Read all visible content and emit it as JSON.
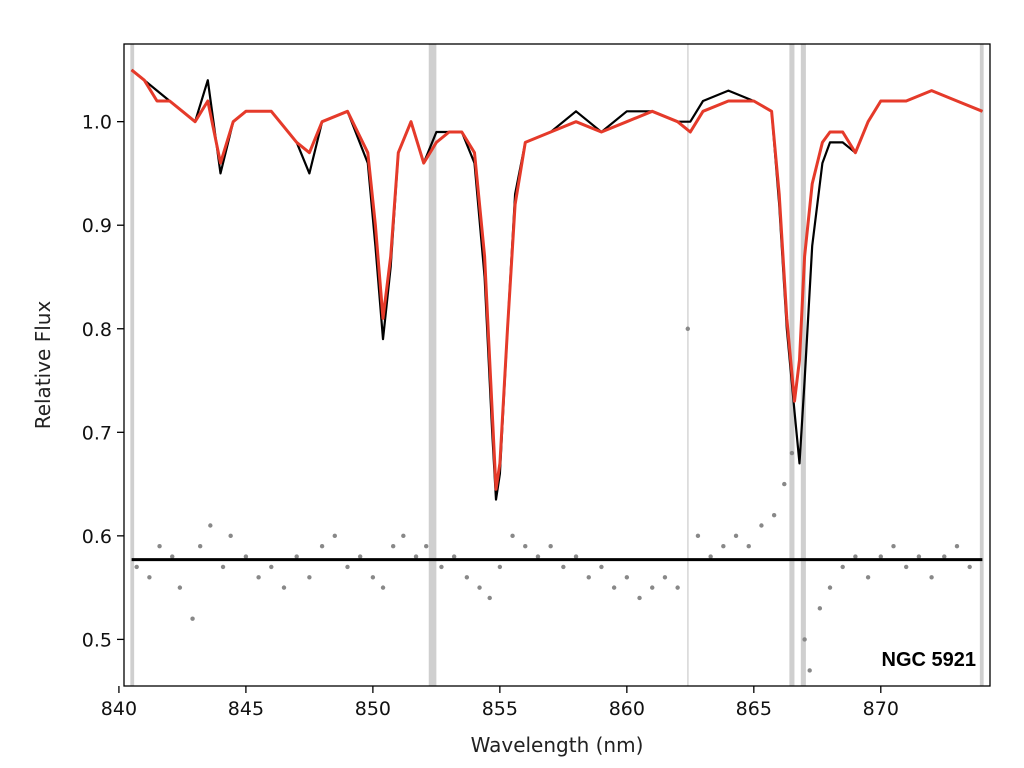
{
  "chart_data": {
    "type": "line",
    "title": "",
    "xlabel": "Wavelength (nm)",
    "ylabel": "Relative Flux",
    "xlim": [
      840.2,
      874.3
    ],
    "ylim": [
      0.455,
      1.075
    ],
    "xticks": [
      840,
      845,
      850,
      855,
      860,
      865,
      870
    ],
    "yticks": [
      0.5,
      0.6,
      0.7,
      0.8,
      0.9,
      1.0
    ],
    "xtick_labels": [
      "840",
      "845",
      "850",
      "855",
      "860",
      "865",
      "870"
    ],
    "ytick_labels": [
      "0.5",
      "0.6",
      "0.7",
      "0.8",
      "0.9",
      "1.0"
    ],
    "annotation": "NGC 5921",
    "grid": false,
    "legend": "none",
    "masked_regions": [
      {
        "x0": 840.45,
        "x1": 840.6
      },
      {
        "x0": 852.2,
        "x1": 852.5
      },
      {
        "x0": 862.38,
        "x1": 862.43
      },
      {
        "x0": 866.4,
        "x1": 866.6
      },
      {
        "x0": 866.85,
        "x1": 867.05
      },
      {
        "x0": 873.9,
        "x1": 874.05
      }
    ],
    "colors": {
      "observed": "#000000",
      "model": "#e53a2a",
      "residuals": "#888888",
      "zero_line": "#000000",
      "mask": "#cfcfcf"
    },
    "residual_baseline": 0.577,
    "series": [
      {
        "style": "black-line",
        "x": [
          840.5,
          841.0,
          841.5,
          842.0,
          842.5,
          843.0,
          843.5,
          844.0,
          844.5,
          845.0,
          846.0,
          847.0,
          847.5,
          848.0,
          849.0,
          849.8,
          850.1,
          850.4,
          850.7,
          851.0,
          851.5,
          852.0,
          852.5,
          853.0,
          853.5,
          854.0,
          854.4,
          854.7,
          854.85,
          855.0,
          855.3,
          855.6,
          856.0,
          857.0,
          858.0,
          859.0,
          860.0,
          861.0,
          862.0,
          862.5,
          863.0,
          864.0,
          865.0,
          865.7,
          866.0,
          866.3,
          866.6,
          866.8,
          867.0,
          867.3,
          867.7,
          868.0,
          868.5,
          869.0,
          869.5,
          870.0,
          871.0,
          872.0,
          873.0,
          874.0
        ],
        "y": [
          1.05,
          1.04,
          1.03,
          1.02,
          1.01,
          1.0,
          1.04,
          0.95,
          1.0,
          1.01,
          1.01,
          0.98,
          0.95,
          1.0,
          1.01,
          0.96,
          0.88,
          0.79,
          0.86,
          0.97,
          1.0,
          0.96,
          0.99,
          0.99,
          0.99,
          0.96,
          0.85,
          0.7,
          0.635,
          0.66,
          0.8,
          0.93,
          0.98,
          0.99,
          1.01,
          0.99,
          1.01,
          1.01,
          1.0,
          1.0,
          1.02,
          1.03,
          1.02,
          1.01,
          0.92,
          0.8,
          0.72,
          0.67,
          0.75,
          0.88,
          0.96,
          0.98,
          0.98,
          0.97,
          1.0,
          1.02,
          1.02,
          1.03,
          1.02,
          1.01
        ]
      },
      {
        "style": "red-line",
        "x": [
          840.5,
          841.0,
          841.5,
          842.0,
          842.5,
          843.0,
          843.5,
          844.0,
          844.5,
          845.0,
          846.0,
          847.0,
          847.5,
          848.0,
          849.0,
          849.8,
          850.1,
          850.4,
          850.7,
          851.0,
          851.5,
          852.0,
          852.5,
          853.0,
          853.5,
          854.0,
          854.4,
          854.7,
          854.85,
          855.0,
          855.3,
          855.6,
          856.0,
          857.0,
          858.0,
          859.0,
          860.0,
          861.0,
          862.0,
          862.5,
          863.0,
          864.0,
          865.0,
          865.7,
          866.0,
          866.3,
          866.6,
          866.8,
          867.0,
          867.3,
          867.7,
          868.0,
          868.5,
          869.0,
          869.5,
          870.0,
          871.0,
          872.0,
          873.0,
          874.0
        ],
        "y": [
          1.05,
          1.04,
          1.02,
          1.02,
          1.01,
          1.0,
          1.02,
          0.96,
          1.0,
          1.01,
          1.01,
          0.98,
          0.97,
          1.0,
          1.01,
          0.97,
          0.9,
          0.81,
          0.87,
          0.97,
          1.0,
          0.96,
          0.98,
          0.99,
          0.99,
          0.97,
          0.87,
          0.72,
          0.645,
          0.67,
          0.8,
          0.92,
          0.98,
          0.99,
          1.0,
          0.99,
          1.0,
          1.01,
          1.0,
          0.99,
          1.01,
          1.02,
          1.02,
          1.01,
          0.93,
          0.81,
          0.73,
          0.77,
          0.87,
          0.94,
          0.98,
          0.99,
          0.99,
          0.97,
          1.0,
          1.02,
          1.02,
          1.03,
          1.02,
          1.01
        ]
      },
      {
        "style": "grey-points",
        "x": [
          840.7,
          841.2,
          841.6,
          842.1,
          842.4,
          842.9,
          843.2,
          843.6,
          844.1,
          844.4,
          845.0,
          845.5,
          846.0,
          846.5,
          847.0,
          847.5,
          848.0,
          848.5,
          849.0,
          849.5,
          850.0,
          850.4,
          850.8,
          851.2,
          851.7,
          852.1,
          852.7,
          853.2,
          853.7,
          854.2,
          854.6,
          855.0,
          855.5,
          856.0,
          856.5,
          857.0,
          857.5,
          858.0,
          858.5,
          859.0,
          859.5,
          860.0,
          860.5,
          861.0,
          861.5,
          862.0,
          862.4,
          862.8,
          863.3,
          863.8,
          864.3,
          864.8,
          865.3,
          865.8,
          866.2,
          866.5,
          867.0,
          867.2,
          867.6,
          868.0,
          868.5,
          869.0,
          869.5,
          870.0,
          870.5,
          871.0,
          871.5,
          872.0,
          872.5,
          873.0,
          873.5
        ],
        "y": [
          0.57,
          0.56,
          0.59,
          0.58,
          0.55,
          0.52,
          0.59,
          0.61,
          0.57,
          0.6,
          0.58,
          0.56,
          0.57,
          0.55,
          0.58,
          0.56,
          0.59,
          0.6,
          0.57,
          0.58,
          0.56,
          0.55,
          0.59,
          0.6,
          0.58,
          0.59,
          0.57,
          0.58,
          0.56,
          0.55,
          0.54,
          0.57,
          0.6,
          0.59,
          0.58,
          0.59,
          0.57,
          0.58,
          0.56,
          0.57,
          0.55,
          0.56,
          0.54,
          0.55,
          0.56,
          0.55,
          0.8,
          0.6,
          0.58,
          0.59,
          0.6,
          0.59,
          0.61,
          0.62,
          0.65,
          0.68,
          0.5,
          0.47,
          0.53,
          0.55,
          0.57,
          0.58,
          0.56,
          0.58,
          0.59,
          0.57,
          0.58,
          0.56,
          0.58,
          0.59,
          0.57
        ]
      }
    ]
  }
}
